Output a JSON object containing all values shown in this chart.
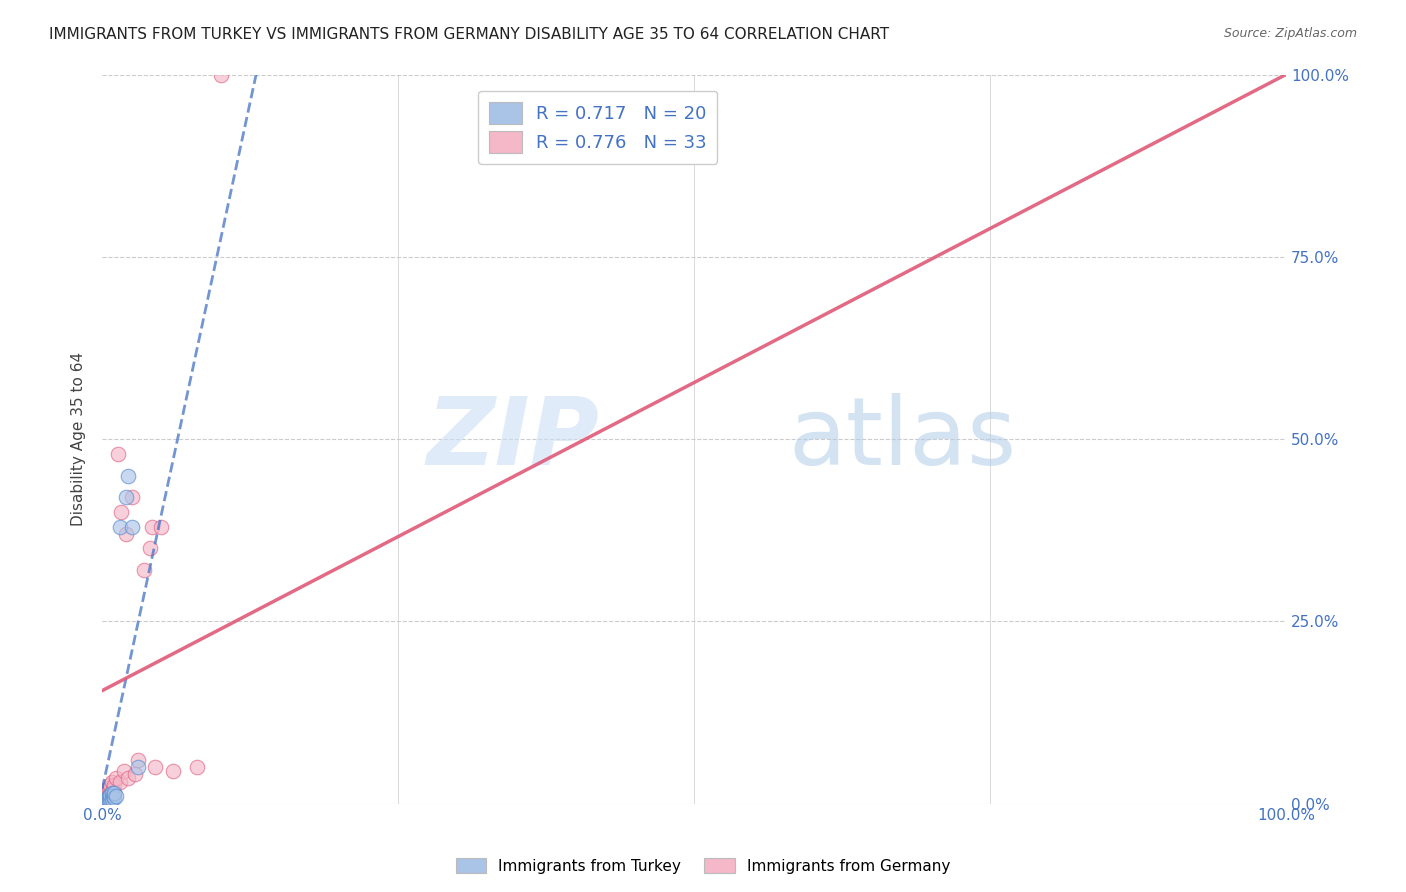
{
  "title": "IMMIGRANTS FROM TURKEY VS IMMIGRANTS FROM GERMANY DISABILITY AGE 35 TO 64 CORRELATION CHART",
  "source": "Source: ZipAtlas.com",
  "ylabel": "Disability Age 35 to 64",
  "xlim": [
    0,
    1.0
  ],
  "ylim": [
    0,
    1.0
  ],
  "ytick_positions": [
    0.0,
    0.25,
    0.5,
    0.75,
    1.0
  ],
  "ytick_labels_right": [
    "0.0%",
    "25.0%",
    "50.0%",
    "75.0%",
    "100.0%"
  ],
  "xtick_positions": [
    0.0,
    1.0
  ],
  "xtick_labels": [
    "0.0%",
    "100.0%"
  ],
  "grid_color": "#cccccc",
  "background_color": "#ffffff",
  "turkey_color": "#aac4e8",
  "germany_color": "#f4b8c8",
  "turkey_edge_color": "#5588cc",
  "germany_edge_color": "#e06080",
  "turkey_line_color": "#4472c4",
  "germany_line_color": "#e05a78",
  "legend_label_1": "R = 0.717   N = 20",
  "legend_label_2": "R = 0.776   N = 33",
  "turkey_scatter_x": [
    0.002,
    0.003,
    0.004,
    0.005,
    0.005,
    0.006,
    0.006,
    0.007,
    0.007,
    0.008,
    0.008,
    0.009,
    0.01,
    0.01,
    0.012,
    0.015,
    0.02,
    0.022,
    0.025,
    0.03
  ],
  "turkey_scatter_y": [
    0.005,
    0.003,
    0.006,
    0.004,
    0.008,
    0.005,
    0.01,
    0.007,
    0.012,
    0.006,
    0.015,
    0.01,
    0.008,
    0.015,
    0.01,
    0.38,
    0.42,
    0.45,
    0.38,
    0.05
  ],
  "germany_scatter_x": [
    0.002,
    0.003,
    0.004,
    0.004,
    0.005,
    0.005,
    0.006,
    0.006,
    0.007,
    0.007,
    0.008,
    0.008,
    0.009,
    0.01,
    0.01,
    0.012,
    0.013,
    0.015,
    0.016,
    0.018,
    0.02,
    0.022,
    0.025,
    0.028,
    0.03,
    0.035,
    0.04,
    0.042,
    0.045,
    0.05,
    0.06,
    0.08,
    0.1
  ],
  "germany_scatter_y": [
    0.012,
    0.01,
    0.015,
    0.02,
    0.012,
    0.018,
    0.008,
    0.022,
    0.015,
    0.025,
    0.01,
    0.03,
    0.02,
    0.015,
    0.025,
    0.035,
    0.48,
    0.03,
    0.4,
    0.045,
    0.37,
    0.035,
    0.42,
    0.04,
    0.06,
    0.32,
    0.35,
    0.38,
    0.05,
    0.38,
    0.045,
    0.05,
    1.0
  ],
  "turkey_trendline_x": [
    0.0,
    0.13
  ],
  "turkey_trendline_y": [
    0.02,
    1.0
  ],
  "germany_trendline_x": [
    0.0,
    1.0
  ],
  "germany_trendline_y": [
    0.155,
    1.0
  ],
  "watermark_zip": "ZIP",
  "watermark_atlas": "atlas",
  "legend_box_color_1": "#aac4e8",
  "legend_box_color_2": "#f4b8c8",
  "bottom_legend_label_1": "Immigrants from Turkey",
  "bottom_legend_label_2": "Immigrants from Germany",
  "axis_label_color": "#4472c4",
  "title_color": "#222222",
  "title_fontsize": 11,
  "marker_size": 110
}
